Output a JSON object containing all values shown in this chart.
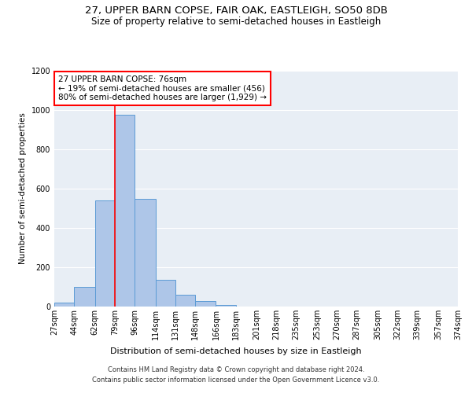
{
  "title": "27, UPPER BARN COPSE, FAIR OAK, EASTLEIGH, SO50 8DB",
  "subtitle": "Size of property relative to semi-detached houses in Eastleigh",
  "xlabel": "Distribution of semi-detached houses by size in Eastleigh",
  "ylabel": "Number of semi-detached properties",
  "footer1": "Contains HM Land Registry data © Crown copyright and database right 2024.",
  "footer2": "Contains public sector information licensed under the Open Government Licence v3.0.",
  "bin_labels": [
    "27sqm",
    "44sqm",
    "62sqm",
    "79sqm",
    "96sqm",
    "114sqm",
    "131sqm",
    "148sqm",
    "166sqm",
    "183sqm",
    "201sqm",
    "218sqm",
    "235sqm",
    "253sqm",
    "270sqm",
    "287sqm",
    "305sqm",
    "322sqm",
    "339sqm",
    "357sqm",
    "374sqm"
  ],
  "bar_values": [
    20,
    100,
    540,
    975,
    550,
    135,
    60,
    30,
    10,
    0,
    0,
    0,
    0,
    0,
    0,
    0,
    0,
    0,
    0,
    0
  ],
  "bin_edges": [
    27,
    44,
    62,
    79,
    96,
    114,
    131,
    148,
    166,
    183,
    201,
    218,
    235,
    253,
    270,
    287,
    305,
    322,
    339,
    357,
    374
  ],
  "bar_color": "#aec6e8",
  "bar_edgecolor": "#5b9bd5",
  "property_line_x": 79,
  "annotation_text1": "27 UPPER BARN COPSE: 76sqm",
  "annotation_text2": "← 19% of semi-detached houses are smaller (456)",
  "annotation_text3": "80% of semi-detached houses are larger (1,929) →",
  "ylim": [
    0,
    1200
  ],
  "yticks": [
    0,
    200,
    400,
    600,
    800,
    1000,
    1200
  ],
  "bg_color": "#e8eef5",
  "title_fontsize": 9.5,
  "subtitle_fontsize": 8.5,
  "annotation_fontsize": 7.5,
  "xlabel_fontsize": 8,
  "ylabel_fontsize": 7.5,
  "tick_fontsize": 7,
  "footer_fontsize": 6
}
